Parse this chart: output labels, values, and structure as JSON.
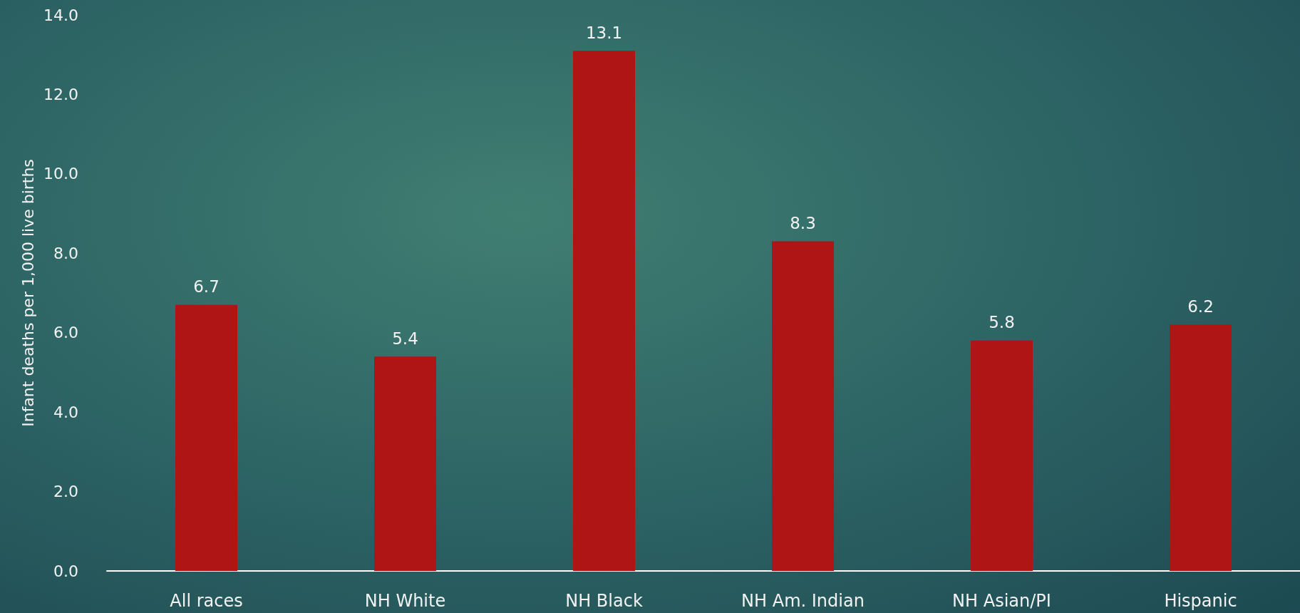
{
  "chart_data": {
    "type": "bar",
    "ylabel": "Infant deaths per 1,000 live births",
    "categories": [
      "All races",
      "NH White",
      "NH Black",
      "NH Am. Indian",
      "NH Asian/PI",
      "Hispanic"
    ],
    "values": [
      6.7,
      5.4,
      13.1,
      8.3,
      5.8,
      6.2
    ],
    "color": "#b01515",
    "ylim": [
      0,
      14
    ],
    "yticks": [
      {
        "value": 0,
        "label": "0.0"
      },
      {
        "value": 2,
        "label": "2.0"
      },
      {
        "value": 4,
        "label": "4.0"
      },
      {
        "value": 6,
        "label": "6.0"
      },
      {
        "value": 8,
        "label": "8.0"
      },
      {
        "value": 10,
        "label": "10.0"
      },
      {
        "value": 12,
        "label": "12.0"
      },
      {
        "value": 14,
        "label": "14.0"
      }
    ],
    "data_labels": true,
    "grid": false
  }
}
